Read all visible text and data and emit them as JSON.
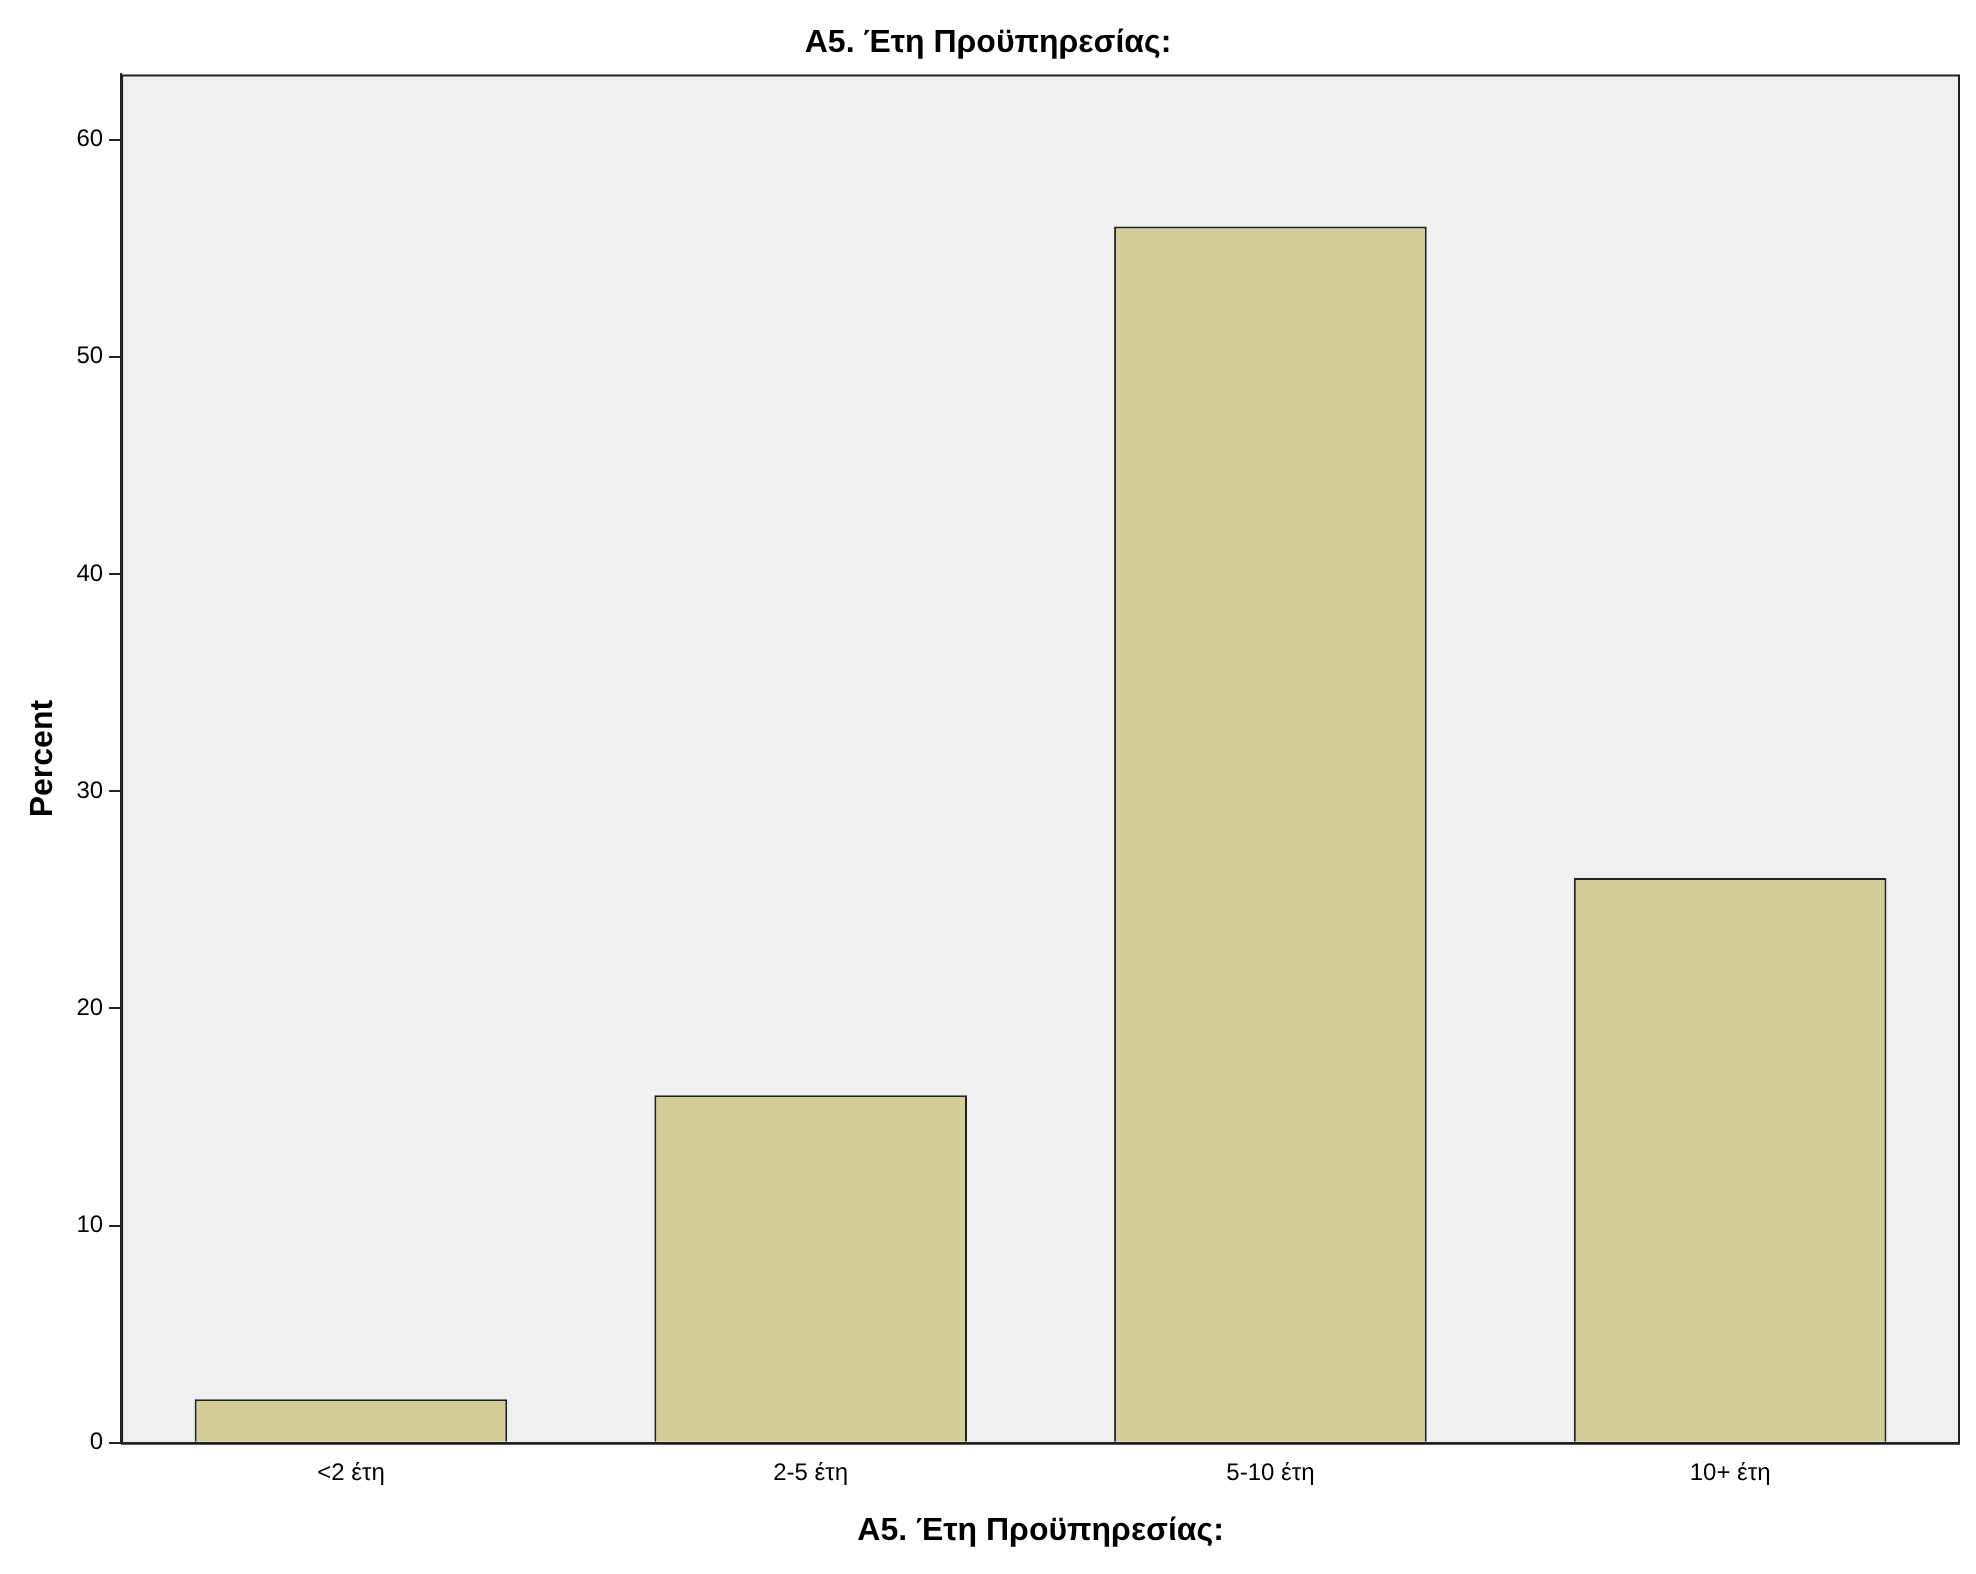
{
  "chart_data": {
    "type": "bar",
    "title": "A5. Έτη Προϋπηρεσίας:",
    "xlabel": "A5. Έτη Προϋπηρεσίας:",
    "ylabel": "Percent",
    "categories": [
      "<2 έτη",
      "2-5 έτη",
      "5-10 έτη",
      "10+ έτη"
    ],
    "values": [
      2,
      16,
      56,
      26
    ],
    "color": "#d3ce97",
    "ylim": [
      0,
      63
    ],
    "yticks": [
      0,
      10,
      20,
      30,
      40,
      50,
      60
    ],
    "grid": false,
    "legend": false
  }
}
